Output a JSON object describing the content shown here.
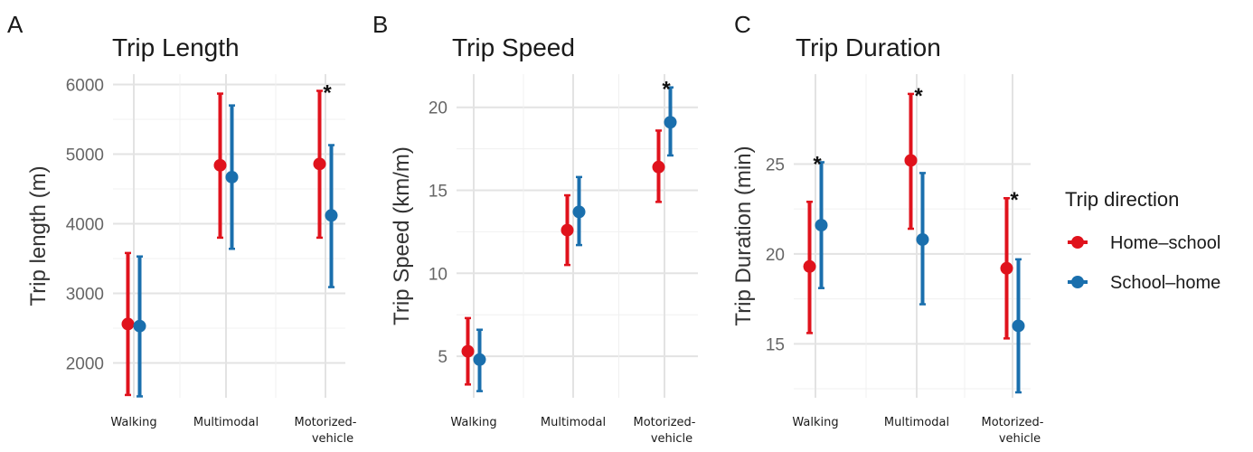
{
  "colors": {
    "home_school": "#e0121c",
    "school_home": "#1a6fad"
  },
  "legend": {
    "title": "Trip direction",
    "items": [
      {
        "label": "Home–school",
        "color": "#e0121c"
      },
      {
        "label": "School–home",
        "color": "#1a6fad"
      }
    ]
  },
  "chart_data": [
    {
      "panel": "A",
      "type": "errorbar",
      "title": "Trip Length",
      "ylabel": "Trip length (m)",
      "categories": [
        "Walking",
        "Multimodal",
        "Motorized-vehicle"
      ],
      "category_lines": [
        [
          "Walking"
        ],
        [
          "Multimodal"
        ],
        [
          "Motorized-",
          "vehicle"
        ]
      ],
      "ylim": [
        1500,
        6150
      ],
      "yticks": [
        2000,
        3000,
        4000,
        5000,
        6000
      ],
      "series": [
        {
          "name": "Home–school",
          "color": "#e0121c",
          "mean": [
            2560,
            4840,
            4860
          ],
          "lower": [
            1540,
            3800,
            3800
          ],
          "upper": [
            3580,
            5870,
            5910
          ]
        },
        {
          "name": "School–home",
          "color": "#1a6fad",
          "mean": [
            2530,
            4670,
            4120
          ],
          "lower": [
            1520,
            3640,
            3090
          ],
          "upper": [
            3530,
            5700,
            5130
          ]
        }
      ],
      "significance": [
        false,
        false,
        true
      ]
    },
    {
      "panel": "B",
      "type": "errorbar",
      "title": "Trip Speed",
      "ylabel": "Trip Speed (km/m)",
      "categories": [
        "Walking",
        "Multimodal",
        "Motorized-vehicle"
      ],
      "category_lines": [
        [
          "Walking"
        ],
        [
          "Multimodal"
        ],
        [
          "Motorized-",
          "vehicle"
        ]
      ],
      "ylim": [
        2.5,
        22
      ],
      "yticks": [
        5,
        10,
        15,
        20
      ],
      "series": [
        {
          "name": "Home–school",
          "color": "#e0121c",
          "mean": [
            5.3,
            12.6,
            16.4
          ],
          "lower": [
            3.3,
            10.5,
            14.3
          ],
          "upper": [
            7.3,
            14.7,
            18.6
          ]
        },
        {
          "name": "School–home",
          "color": "#1a6fad",
          "mean": [
            4.8,
            13.7,
            19.1
          ],
          "lower": [
            2.9,
            11.7,
            17.1
          ],
          "upper": [
            6.6,
            15.8,
            21.2
          ]
        }
      ],
      "significance": [
        false,
        false,
        true
      ]
    },
    {
      "panel": "C",
      "type": "errorbar",
      "title": "Trip Duration",
      "ylabel": "Trip Duration (min)",
      "categories": [
        "Walking",
        "Multimodal",
        "Motorized-vehicle"
      ],
      "category_lines": [
        [
          "Walking"
        ],
        [
          "Multimodal"
        ],
        [
          "Motorized-",
          "vehicle"
        ]
      ],
      "ylim": [
        12,
        30
      ],
      "yticks": [
        15,
        20,
        25
      ],
      "series": [
        {
          "name": "Home–school",
          "color": "#e0121c",
          "mean": [
            19.3,
            25.2,
            19.2
          ],
          "lower": [
            15.6,
            21.4,
            15.3
          ],
          "upper": [
            22.9,
            28.9,
            23.1
          ]
        },
        {
          "name": "School–home",
          "color": "#1a6fad",
          "mean": [
            21.6,
            20.8,
            16.0
          ],
          "lower": [
            18.1,
            17.2,
            12.3
          ],
          "upper": [
            25.1,
            24.5,
            19.7
          ]
        }
      ],
      "significance": [
        true,
        true,
        true
      ]
    }
  ]
}
